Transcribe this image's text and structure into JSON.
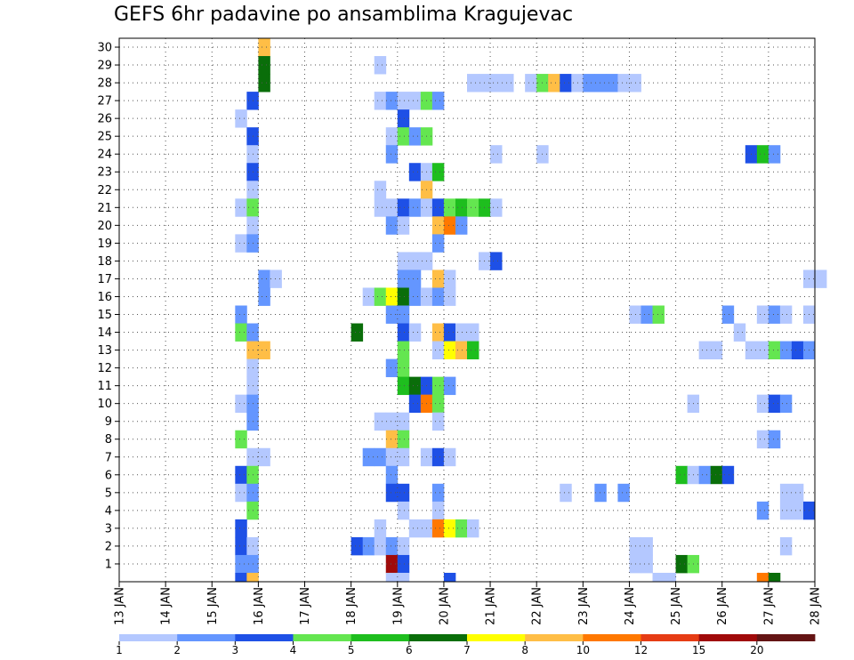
{
  "chart_data": {
    "type": "heatmap",
    "title": "GEFS 6hr padavine po ansamblima Kragujevac",
    "x_tick_labels": [
      "13 JAN",
      "14 JAN",
      "15 JAN",
      "16 JAN",
      "17 JAN",
      "18 JAN",
      "19 JAN",
      "20 JAN",
      "21 JAN",
      "22 JAN",
      "23 JAN",
      "24 JAN",
      "25 JAN",
      "26 JAN",
      "27 JAN",
      "28 JAN"
    ],
    "y_tick_labels": [
      "1",
      "2",
      "3",
      "4",
      "5",
      "6",
      "7",
      "8",
      "9",
      "10",
      "11",
      "12",
      "13",
      "14",
      "15",
      "16",
      "17",
      "18",
      "19",
      "20",
      "21",
      "22",
      "23",
      "24",
      "25",
      "26",
      "27",
      "28",
      "29",
      "30"
    ],
    "grid": true,
    "legend_placement": "bottom",
    "legend_thresholds": [
      "1",
      "2",
      "3",
      "4",
      "5",
      "6",
      "7",
      "8",
      "10",
      "12",
      "15",
      "20"
    ],
    "legend_colors": [
      "#b4c8ff",
      "#6496ff",
      "#1e50e6",
      "#64e650",
      "#1ebe1e",
      "#0a6e0a",
      "#ffff00",
      "#ffbe46",
      "#ff7800",
      "#e63c14",
      "#a00a0a",
      "#641414"
    ],
    "cells": [
      [
        3.0,
        30,
        7
      ],
      [
        3.0,
        29,
        5
      ],
      [
        3.0,
        28,
        5
      ],
      [
        2.75,
        27,
        2
      ],
      [
        2.5,
        26,
        0
      ],
      [
        2.75,
        25,
        2
      ],
      [
        2.75,
        24,
        0
      ],
      [
        2.75,
        23,
        2
      ],
      [
        2.75,
        22,
        0
      ],
      [
        2.5,
        21,
        0
      ],
      [
        2.75,
        21,
        3
      ],
      [
        2.75,
        20,
        0
      ],
      [
        2.75,
        19,
        0
      ],
      [
        2.5,
        19,
        0
      ],
      [
        2.75,
        19,
        1
      ],
      [
        3.0,
        17,
        1
      ],
      [
        3.25,
        17,
        0
      ],
      [
        3.0,
        16,
        1
      ],
      [
        2.5,
        15,
        1
      ],
      [
        2.5,
        14,
        3
      ],
      [
        2.75,
        14,
        1
      ],
      [
        2.75,
        13,
        7
      ],
      [
        3.0,
        13,
        7
      ],
      [
        2.75,
        12,
        0
      ],
      [
        2.75,
        11,
        0
      ],
      [
        2.5,
        10,
        0
      ],
      [
        2.75,
        10,
        1
      ],
      [
        2.75,
        9,
        1
      ],
      [
        2.5,
        8,
        3
      ],
      [
        2.75,
        7,
        0
      ],
      [
        3.0,
        7,
        0
      ],
      [
        2.5,
        6,
        2
      ],
      [
        2.75,
        6,
        3
      ],
      [
        2.5,
        5,
        0
      ],
      [
        2.75,
        5,
        1
      ],
      [
        2.75,
        4,
        3
      ],
      [
        2.5,
        3,
        2
      ],
      [
        2.5,
        2,
        2
      ],
      [
        2.75,
        2,
        0
      ],
      [
        2.5,
        1,
        1
      ],
      [
        2.75,
        1,
        1
      ],
      [
        2.5,
        0,
        2
      ],
      [
        2.75,
        0,
        7
      ],
      [
        5.5,
        29,
        0
      ],
      [
        5.5,
        27,
        0
      ],
      [
        5.75,
        27,
        1
      ],
      [
        6.0,
        27,
        0
      ],
      [
        6.25,
        27,
        0
      ],
      [
        6.5,
        27,
        3
      ],
      [
        6.75,
        27,
        1
      ],
      [
        6.0,
        26,
        2
      ],
      [
        5.75,
        25,
        0
      ],
      [
        6.0,
        25,
        3
      ],
      [
        6.25,
        25,
        1
      ],
      [
        6.5,
        25,
        3
      ],
      [
        5.75,
        24,
        1
      ],
      [
        6.25,
        23,
        2
      ],
      [
        6.5,
        23,
        0
      ],
      [
        6.75,
        23,
        4
      ],
      [
        5.5,
        22,
        0
      ],
      [
        6.5,
        22,
        7
      ],
      [
        5.5,
        21,
        0
      ],
      [
        5.75,
        21,
        0
      ],
      [
        6.0,
        21,
        2
      ],
      [
        6.25,
        21,
        1
      ],
      [
        6.5,
        21,
        0
      ],
      [
        6.75,
        21,
        2
      ],
      [
        7.0,
        21,
        3
      ],
      [
        7.25,
        21,
        4
      ],
      [
        7.5,
        21,
        3
      ],
      [
        7.75,
        21,
        4
      ],
      [
        8.0,
        21,
        0
      ],
      [
        5.75,
        20,
        1
      ],
      [
        6.0,
        20,
        0
      ],
      [
        6.75,
        20,
        7
      ],
      [
        7.0,
        20,
        8
      ],
      [
        7.25,
        20,
        1
      ],
      [
        6.75,
        19,
        1
      ],
      [
        6.0,
        18,
        0
      ],
      [
        6.25,
        18,
        0
      ],
      [
        6.5,
        18,
        0
      ],
      [
        7.75,
        18,
        0
      ],
      [
        8.0,
        18,
        2
      ],
      [
        6.0,
        17,
        1
      ],
      [
        6.25,
        17,
        1
      ],
      [
        6.75,
        17,
        7
      ],
      [
        7.0,
        17,
        0
      ],
      [
        5.25,
        16,
        0
      ],
      [
        5.5,
        16,
        3
      ],
      [
        5.75,
        16,
        6
      ],
      [
        6.0,
        16,
        5
      ],
      [
        6.25,
        16,
        1
      ],
      [
        6.5,
        16,
        0
      ],
      [
        6.75,
        16,
        1
      ],
      [
        7.0,
        16,
        0
      ],
      [
        5.75,
        15,
        1
      ],
      [
        6.0,
        15,
        1
      ],
      [
        5.0,
        14,
        5
      ],
      [
        6.0,
        14,
        2
      ],
      [
        6.25,
        14,
        0
      ],
      [
        6.75,
        14,
        7
      ],
      [
        7.0,
        14,
        2
      ],
      [
        7.25,
        14,
        0
      ],
      [
        7.5,
        14,
        0
      ],
      [
        6.0,
        13,
        3
      ],
      [
        6.75,
        13,
        0
      ],
      [
        7.0,
        13,
        6
      ],
      [
        7.25,
        13,
        7
      ],
      [
        7.5,
        13,
        4
      ],
      [
        5.75,
        12,
        1
      ],
      [
        6.0,
        12,
        3
      ],
      [
        6.0,
        11,
        4
      ],
      [
        6.25,
        11,
        5
      ],
      [
        6.5,
        11,
        2
      ],
      [
        6.75,
        11,
        3
      ],
      [
        7.0,
        11,
        1
      ],
      [
        6.25,
        10,
        2
      ],
      [
        6.5,
        10,
        8
      ],
      [
        6.75,
        10,
        3
      ],
      [
        5.5,
        9,
        0
      ],
      [
        5.75,
        9,
        0
      ],
      [
        6.0,
        9,
        0
      ],
      [
        6.75,
        9,
        0
      ],
      [
        5.75,
        8,
        7
      ],
      [
        6.0,
        8,
        3
      ],
      [
        5.25,
        7,
        1
      ],
      [
        5.5,
        7,
        1
      ],
      [
        5.75,
        7,
        0
      ],
      [
        6.0,
        7,
        0
      ],
      [
        6.5,
        7,
        0
      ],
      [
        6.75,
        7,
        2
      ],
      [
        7.0,
        7,
        0
      ],
      [
        5.75,
        6,
        1
      ],
      [
        5.75,
        5,
        2
      ],
      [
        6.0,
        5,
        2
      ],
      [
        6.75,
        5,
        1
      ],
      [
        6.0,
        4,
        0
      ],
      [
        6.75,
        4,
        0
      ],
      [
        5.5,
        3,
        0
      ],
      [
        6.25,
        3,
        0
      ],
      [
        6.5,
        3,
        0
      ],
      [
        6.75,
        3,
        8
      ],
      [
        7.0,
        3,
        6
      ],
      [
        7.25,
        3,
        3
      ],
      [
        7.5,
        3,
        0
      ],
      [
        5.0,
        2,
        2
      ],
      [
        5.25,
        2,
        1
      ],
      [
        5.5,
        2,
        0
      ],
      [
        5.75,
        2,
        1
      ],
      [
        6.0,
        2,
        0
      ],
      [
        5.75,
        1,
        10
      ],
      [
        6.0,
        1,
        2
      ],
      [
        5.75,
        0,
        0
      ],
      [
        6.0,
        0,
        0
      ],
      [
        7.0,
        0,
        2
      ],
      [
        7.75,
        28,
        0
      ],
      [
        7.5,
        28,
        0
      ],
      [
        8.0,
        28,
        0
      ],
      [
        8.25,
        28,
        0
      ],
      [
        8.75,
        28,
        0
      ],
      [
        9.0,
        28,
        3
      ],
      [
        9.25,
        28,
        7
      ],
      [
        9.5,
        28,
        2
      ],
      [
        9.75,
        28,
        0
      ],
      [
        10.0,
        28,
        1
      ],
      [
        10.25,
        28,
        1
      ],
      [
        10.5,
        28,
        1
      ],
      [
        10.75,
        28,
        0
      ],
      [
        11.0,
        28,
        0
      ],
      [
        8.0,
        24,
        0
      ],
      [
        9.0,
        24,
        0
      ],
      [
        13.5,
        24,
        2
      ],
      [
        13.75,
        24,
        4
      ],
      [
        14.0,
        24,
        1
      ],
      [
        14.75,
        17,
        0
      ],
      [
        15.0,
        17,
        0
      ],
      [
        11.0,
        15,
        0
      ],
      [
        11.25,
        15,
        1
      ],
      [
        11.5,
        15,
        3
      ],
      [
        13.0,
        15,
        1
      ],
      [
        13.75,
        15,
        0
      ],
      [
        14.0,
        15,
        1
      ],
      [
        14.25,
        15,
        0
      ],
      [
        14.75,
        15,
        0
      ],
      [
        13.25,
        14,
        0
      ],
      [
        12.5,
        13,
        0
      ],
      [
        12.75,
        13,
        0
      ],
      [
        13.5,
        13,
        0
      ],
      [
        13.75,
        13,
        0
      ],
      [
        14.0,
        13,
        3
      ],
      [
        14.25,
        13,
        1
      ],
      [
        14.5,
        13,
        2
      ],
      [
        14.75,
        13,
        1
      ],
      [
        12.25,
        10,
        0
      ],
      [
        13.75,
        10,
        0
      ],
      [
        14.0,
        10,
        2
      ],
      [
        14.25,
        10,
        1
      ],
      [
        13.75,
        8,
        0
      ],
      [
        14.0,
        8,
        1
      ],
      [
        12.0,
        6,
        4
      ],
      [
        12.25,
        6,
        0
      ],
      [
        12.5,
        6,
        1
      ],
      [
        12.75,
        6,
        5
      ],
      [
        13.0,
        6,
        2
      ],
      [
        9.5,
        5,
        0
      ],
      [
        10.25,
        5,
        1
      ],
      [
        10.75,
        5,
        1
      ],
      [
        14.25,
        5,
        0
      ],
      [
        14.5,
        5,
        0
      ],
      [
        13.75,
        4,
        1
      ],
      [
        14.25,
        4,
        0
      ],
      [
        14.5,
        4,
        0
      ],
      [
        14.75,
        4,
        2
      ],
      [
        11.0,
        2,
        0
      ],
      [
        11.25,
        2,
        0
      ],
      [
        14.25,
        2,
        0
      ],
      [
        11.0,
        1,
        0
      ],
      [
        11.25,
        1,
        0
      ],
      [
        12.0,
        1,
        5
      ],
      [
        12.25,
        1,
        3
      ],
      [
        11.5,
        0,
        0
      ],
      [
        11.75,
        0,
        0
      ],
      [
        13.75,
        0,
        8
      ],
      [
        14.0,
        0,
        5
      ]
    ]
  }
}
